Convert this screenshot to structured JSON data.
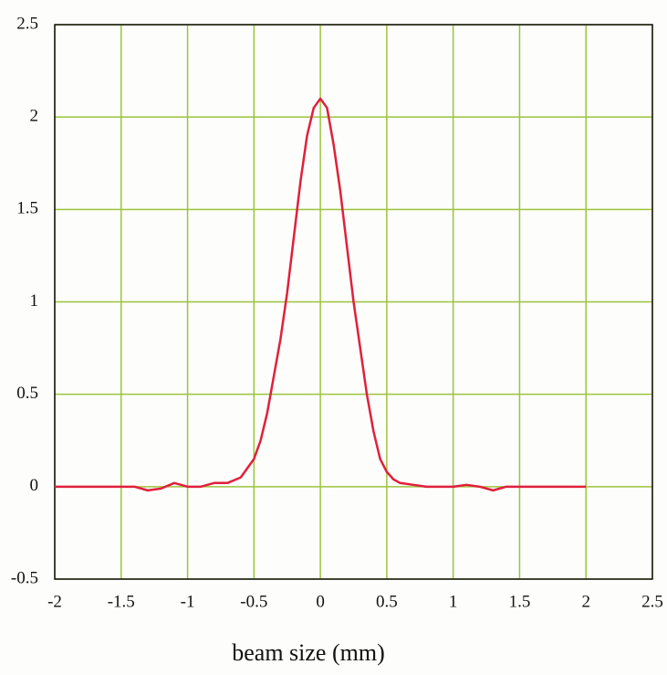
{
  "chart_data": {
    "type": "line",
    "x_label": "beam size (mm)",
    "x": [
      -2,
      -1.8,
      -1.6,
      -1.4,
      -1.3,
      -1.2,
      -1.1,
      -1.0,
      -0.9,
      -0.8,
      -0.7,
      -0.6,
      -0.55,
      -0.5,
      -0.45,
      -0.4,
      -0.35,
      -0.3,
      -0.25,
      -0.2,
      -0.15,
      -0.1,
      -0.05,
      0,
      0.05,
      0.1,
      0.15,
      0.2,
      0.25,
      0.3,
      0.35,
      0.4,
      0.45,
      0.5,
      0.55,
      0.6,
      0.7,
      0.8,
      0.9,
      1.0,
      1.1,
      1.2,
      1.3,
      1.4,
      1.6,
      1.8,
      2.0
    ],
    "series": [
      {
        "color": "#e0203c",
        "values": [
          0,
          0,
          0,
          0,
          -0.02,
          -0.01,
          0.02,
          0,
          0,
          0.02,
          0.02,
          0.05,
          0.1,
          0.15,
          0.25,
          0.4,
          0.6,
          0.8,
          1.05,
          1.35,
          1.65,
          1.9,
          2.05,
          2.1,
          2.05,
          1.85,
          1.6,
          1.3,
          1.0,
          0.75,
          0.5,
          0.3,
          0.15,
          0.08,
          0.04,
          0.02,
          0.01,
          0,
          0,
          0,
          0.01,
          0,
          -0.02,
          0,
          0,
          0,
          0
        ]
      }
    ],
    "xlim": [
      -2,
      2.5
    ],
    "xticks": [
      -2,
      -1.5,
      -1,
      -0.5,
      0,
      0.5,
      1,
      1.5,
      2,
      2.5
    ],
    "ylim": [
      -0.5,
      2.5
    ],
    "yticks": [
      -0.5,
      0,
      0.5,
      1,
      1.5,
      2,
      2.5
    ],
    "grid": true,
    "grid_color": "#9cc43c"
  }
}
